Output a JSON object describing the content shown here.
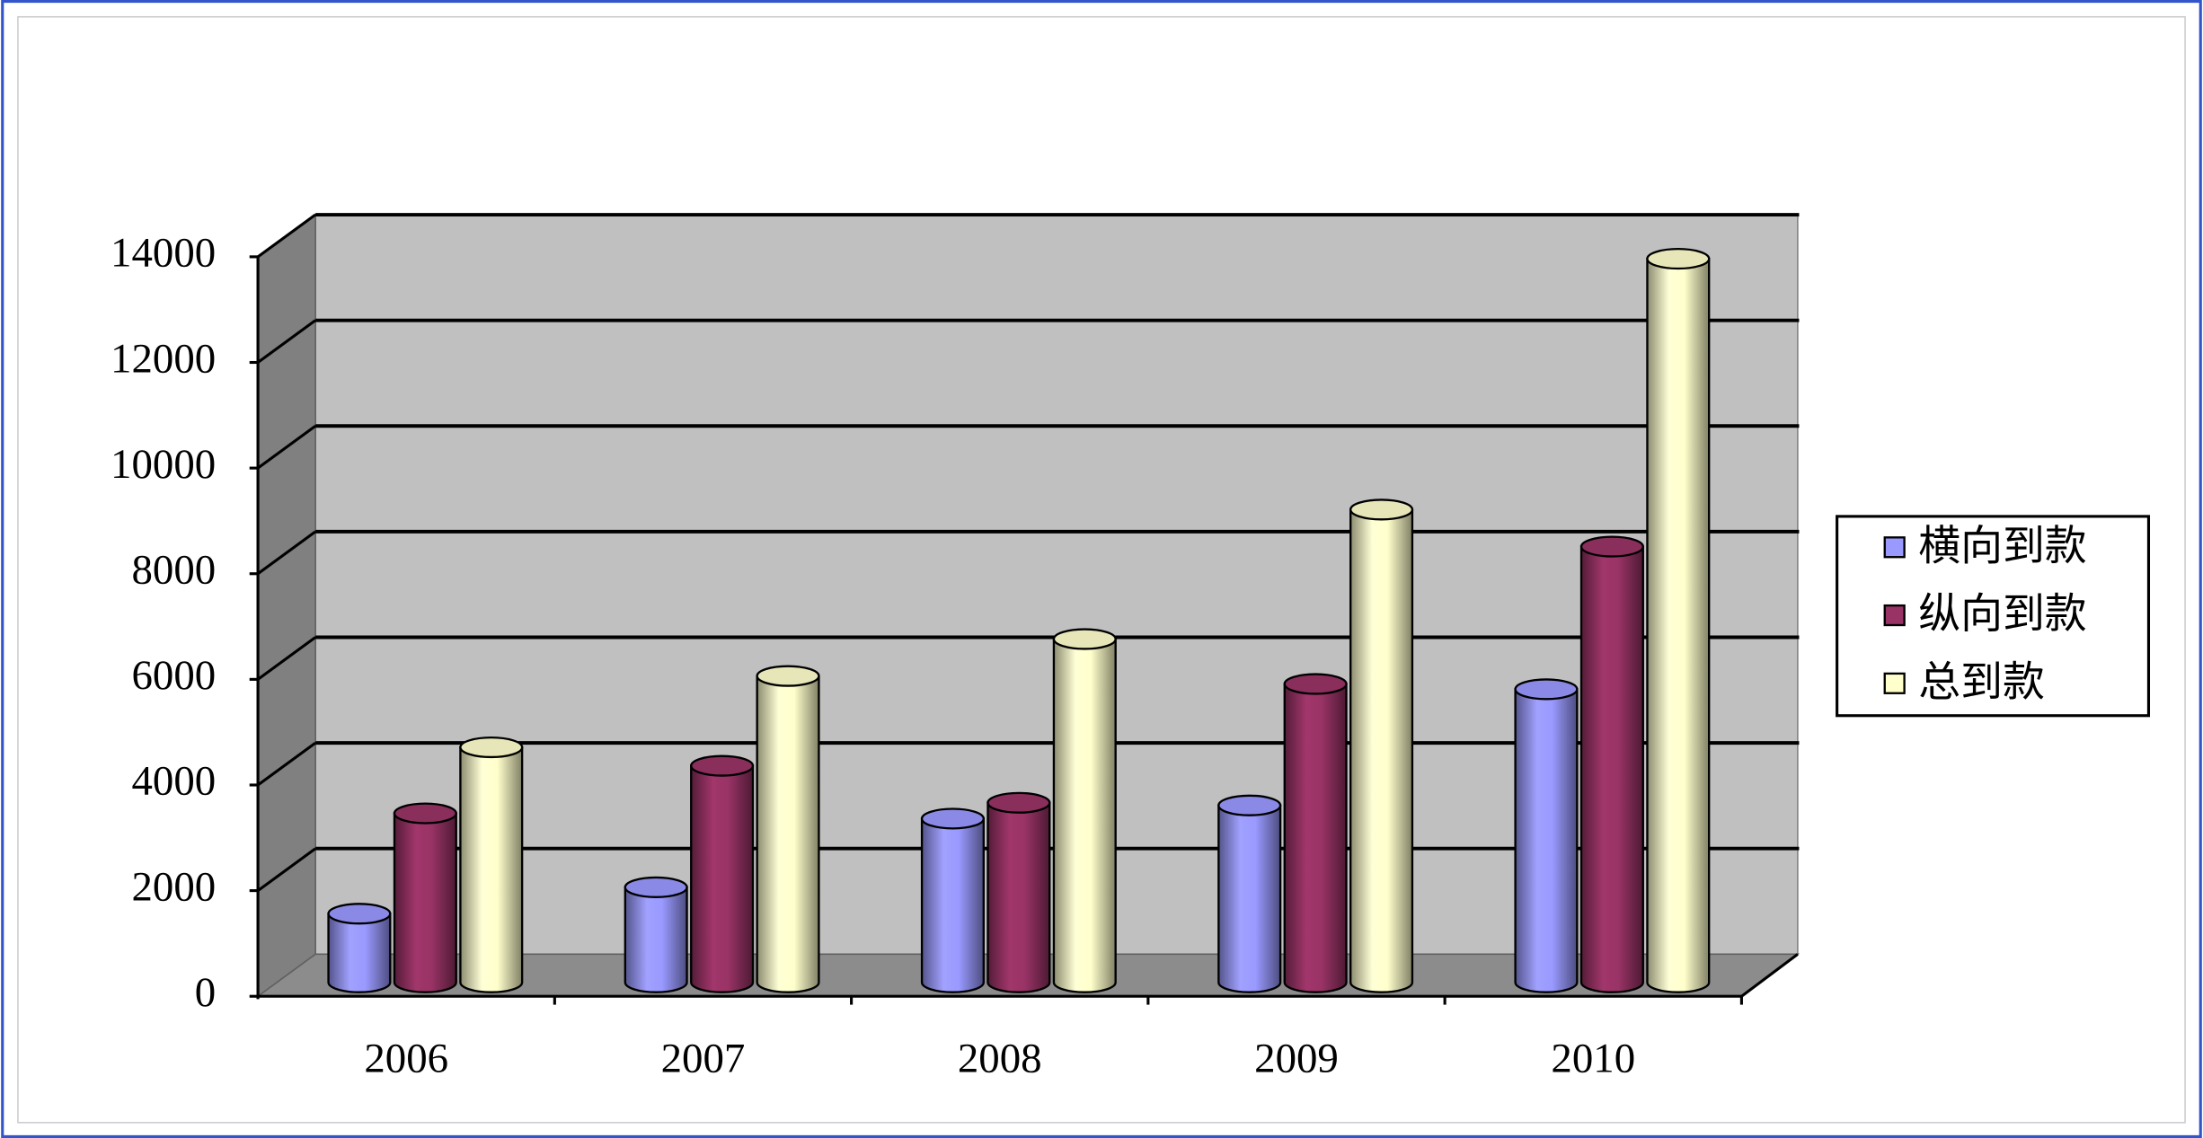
{
  "chart_data": {
    "type": "bar",
    "categories": [
      "2006",
      "2007",
      "2008",
      "2009",
      "2010"
    ],
    "series": [
      {
        "name": "横向到款",
        "color": "#9999ff",
        "values": [
          1300,
          1800,
          3100,
          3350,
          5550
        ]
      },
      {
        "name": "纵向到款",
        "color": "#993366",
        "values": [
          3200,
          4100,
          3400,
          5650,
          8250
        ]
      },
      {
        "name": "总到款",
        "color": "#ffffcc",
        "values": [
          4450,
          5800,
          6500,
          8950,
          13700
        ]
      }
    ],
    "ylim": [
      0,
      14000
    ],
    "yticks": [
      0,
      2000,
      4000,
      6000,
      8000,
      10000,
      12000,
      14000
    ],
    "grid": true,
    "legend": "right"
  }
}
